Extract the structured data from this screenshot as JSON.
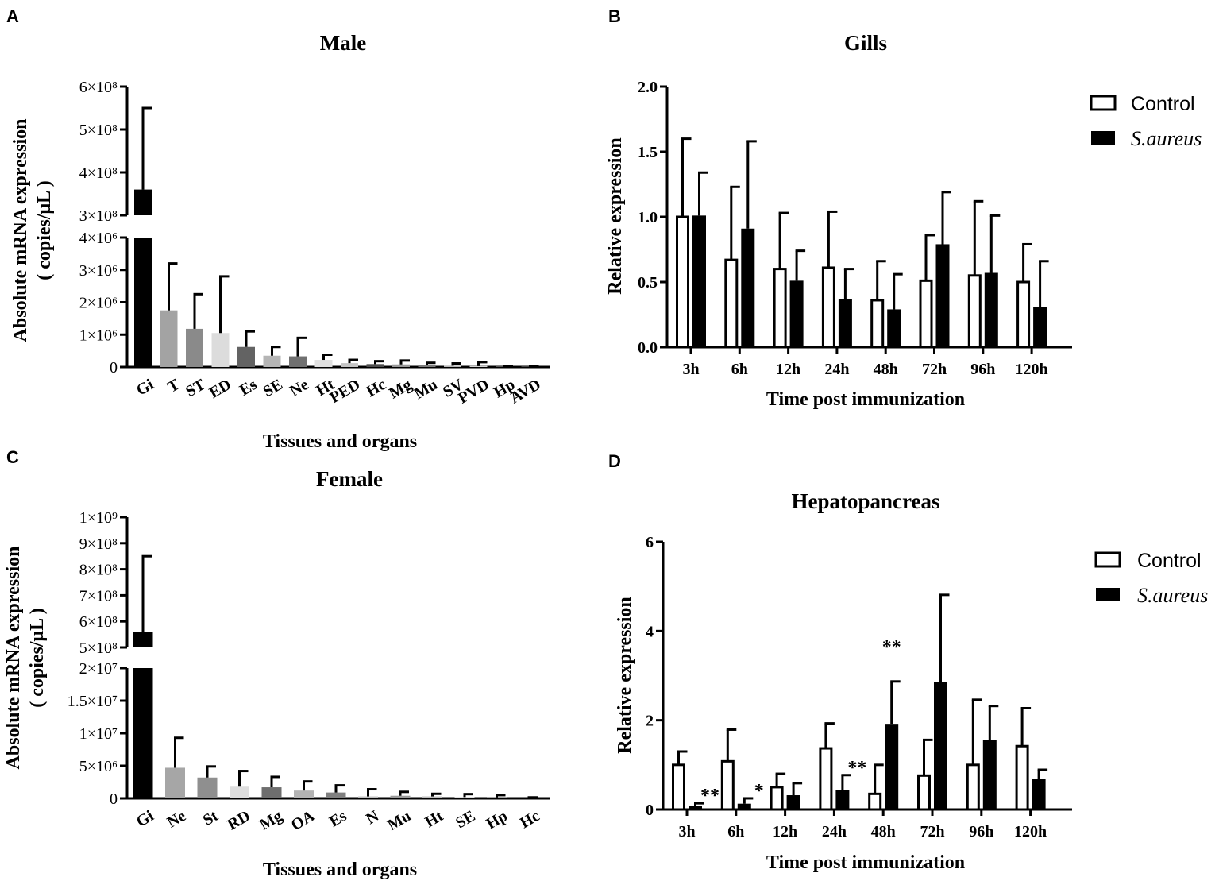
{
  "chart_data": [
    {
      "panel": "A",
      "type": "bar",
      "title": "Male",
      "xlabel": "Tissues and organs",
      "ylabel": [
        "Absolute mRNA expression",
        "( copies/μL )"
      ],
      "categories": [
        "Gi",
        "T",
        "ST",
        "ED",
        "Es",
        "SE",
        "Ne",
        "Ht",
        "PED",
        "Hc",
        "Mg",
        "Mu",
        "SV",
        "PVD",
        "Hp",
        "AVD"
      ],
      "values": [
        360000000,
        1750000,
        1180000,
        1050000,
        620000,
        350000,
        330000,
        220000,
        120000,
        90000,
        80000,
        60000,
        40000,
        30000,
        15000,
        10000
      ],
      "errors": [
        190000000,
        1450000,
        1070000,
        1750000,
        480000,
        270000,
        570000,
        160000,
        100000,
        90000,
        120000,
        70000,
        70000,
        120000,
        20000,
        10000
      ],
      "colors": [
        "#000000",
        "#a3a3a3",
        "#8a8a8a",
        "#dcdcdc",
        "#636363",
        "#b5b5b5",
        "#707070",
        "#e0e0e0",
        "#c4c4c4",
        "#4d4d4d",
        "#999999",
        "#7a7a7a",
        "#b8b8b8",
        "#d4d4d4",
        "#8c8c8c",
        "#a8a8a8"
      ],
      "yticks_lower": [
        {
          "v": 0,
          "label": "0"
        },
        {
          "v": 1000000,
          "label": "1×10⁶"
        },
        {
          "v": 2000000,
          "label": "2×10⁶"
        },
        {
          "v": 3000000,
          "label": "3×10⁶"
        },
        {
          "v": 4000000,
          "label": "4×10⁶"
        }
      ],
      "yticks_upper": [
        {
          "v": 300000000,
          "label": "3×10⁸"
        },
        {
          "v": 400000000,
          "label": "4×10⁸"
        },
        {
          "v": 500000000,
          "label": "5×10⁸"
        },
        {
          "v": 600000000,
          "label": "6×10⁸"
        }
      ],
      "ylim_lower": [
        0,
        4000000
      ],
      "ylim_upper": [
        300000000,
        600000000
      ]
    },
    {
      "panel": "B",
      "type": "bar",
      "title": "Gills",
      "xlabel": "Time post immunization",
      "ylabel": "Relative expression",
      "categories": [
        "3h",
        "6h",
        "12h",
        "24h",
        "48h",
        "72h",
        "96h",
        "120h"
      ],
      "ylim": [
        0,
        2.0
      ],
      "yticks": [
        "0.0",
        "0.5",
        "1.0",
        "1.5",
        "2.0"
      ],
      "series": [
        {
          "name": "Control",
          "values": [
            1.0,
            0.67,
            0.6,
            0.61,
            0.36,
            0.51,
            0.55,
            0.5
          ],
          "errors": [
            0.6,
            0.56,
            0.43,
            0.43,
            0.3,
            0.35,
            0.57,
            0.29
          ]
        },
        {
          "name": "S.aureus",
          "values": [
            1.01,
            0.91,
            0.51,
            0.37,
            0.29,
            0.79,
            0.57,
            0.31
          ],
          "errors": [
            0.33,
            0.67,
            0.23,
            0.23,
            0.27,
            0.4,
            0.44,
            0.35
          ]
        }
      ],
      "significance": [
        "",
        "",
        "",
        "",
        "",
        "",
        "",
        ""
      ]
    },
    {
      "panel": "C",
      "type": "bar",
      "title": "Female",
      "xlabel": "Tissues and organs",
      "ylabel": [
        "Absolute mRNA expression",
        "( copies/μL )"
      ],
      "categories": [
        "Gi",
        "Ne",
        "St",
        "RD",
        "Mg",
        "OA",
        "Es",
        "N",
        "Mu",
        "Ht",
        "SE",
        "Hp",
        "Hc"
      ],
      "values": [
        560000000,
        4700000,
        3200000,
        1800000,
        1700000,
        1200000,
        900000,
        300000,
        400000,
        300000,
        200000,
        150000,
        50000
      ],
      "errors": [
        290000000,
        4600000,
        1700000,
        2400000,
        1600000,
        1400000,
        1100000,
        1100000,
        600000,
        400000,
        450000,
        350000,
        100000
      ],
      "colors": [
        "#000000",
        "#a6a6a6",
        "#8f8f8f",
        "#dedede",
        "#6e6e6e",
        "#b3b3b3",
        "#808080",
        "#c0c0c0",
        "#9a9a9a",
        "#bcbcbc",
        "#d0d0d0",
        "#b0b0b0",
        "#909090"
      ],
      "yticks_lower": [
        {
          "v": 0,
          "label": "0"
        },
        {
          "v": 5000000,
          "label": "5×10⁶"
        },
        {
          "v": 10000000,
          "label": "1×10⁷"
        },
        {
          "v": 15000000,
          "label": "1.5×10⁷"
        },
        {
          "v": 20000000,
          "label": "2×10⁷"
        }
      ],
      "yticks_upper": [
        {
          "v": 500000000,
          "label": "5×10⁸"
        },
        {
          "v": 600000000,
          "label": "6×10⁸"
        },
        {
          "v": 700000000,
          "label": "7×10⁸"
        },
        {
          "v": 800000000,
          "label": "8×10⁸"
        },
        {
          "v": 900000000,
          "label": "9×10⁸"
        },
        {
          "v": 1000000000,
          "label": "1×10⁹"
        }
      ],
      "ylim_lower": [
        0,
        20000000
      ],
      "ylim_upper": [
        500000000,
        1000000000
      ]
    },
    {
      "panel": "D",
      "type": "bar",
      "title": "Hepatopancreas",
      "xlabel": "Time post immunization",
      "ylabel": "Relative expression",
      "categories": [
        "3h",
        "6h",
        "12h",
        "24h",
        "48h",
        "72h",
        "96h",
        "120h"
      ],
      "ylim": [
        0,
        6
      ],
      "yticks": [
        "0",
        "2",
        "4",
        "6"
      ],
      "series": [
        {
          "name": "Control",
          "values": [
            1.0,
            1.08,
            0.5,
            1.37,
            0.35,
            0.76,
            1.0,
            1.42
          ],
          "errors": [
            0.3,
            0.71,
            0.3,
            0.56,
            0.65,
            0.8,
            1.46,
            0.85
          ]
        },
        {
          "name": "S.aureus",
          "values": [
            0.08,
            0.13,
            0.32,
            0.43,
            1.92,
            2.86,
            1.55,
            0.69
          ],
          "errors": [
            0.06,
            0.12,
            0.27,
            0.34,
            0.95,
            1.95,
            0.77,
            0.2
          ]
        }
      ],
      "significance": [
        "**",
        "*",
        "",
        "**",
        "**",
        "",
        "",
        ""
      ],
      "significance_position": [
        "series2",
        "series2",
        "",
        "series2",
        "series2-above",
        "",
        "",
        ""
      ]
    }
  ],
  "panel_labels": [
    "A",
    "B",
    "C",
    "D"
  ],
  "legend": {
    "control": "Control",
    "treated": "S.aureus"
  }
}
